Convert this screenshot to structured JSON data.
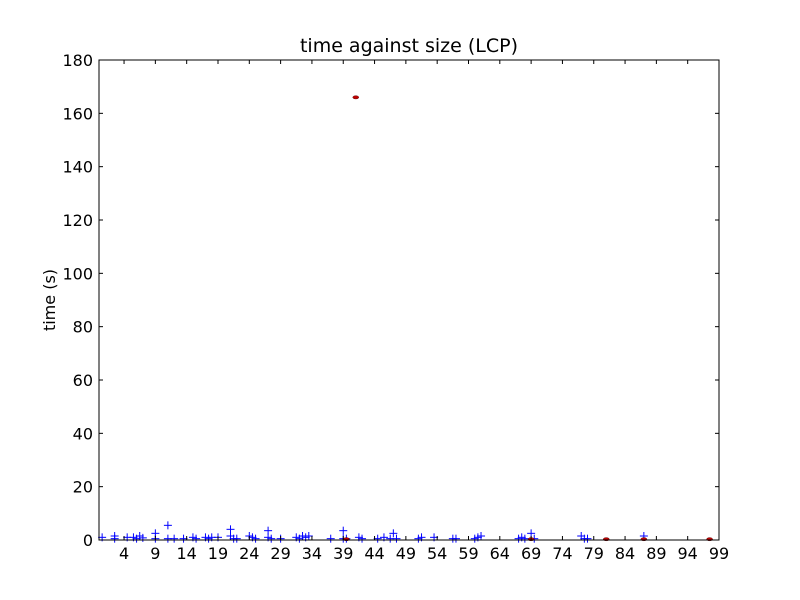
{
  "chart_data": {
    "type": "scatter",
    "title": "time against size (LCP)",
    "xlabel": "",
    "ylabel": "time (s)",
    "xlim": [
      0,
      99
    ],
    "ylim": [
      0,
      180
    ],
    "x_ticks": [
      4,
      9,
      14,
      19,
      24,
      29,
      34,
      39,
      44,
      49,
      54,
      59,
      64,
      69,
      74,
      79,
      84,
      89,
      94,
      99
    ],
    "y_ticks": [
      0,
      20,
      40,
      60,
      80,
      100,
      120,
      140,
      160,
      180
    ],
    "grid": false,
    "series": [
      {
        "marker": "+",
        "color": "#0000ff",
        "points": [
          [
            0.5,
            1.0
          ],
          [
            2.5,
            1.5
          ],
          [
            2.5,
            0.5
          ],
          [
            4.5,
            1.0
          ],
          [
            5.5,
            1.0
          ],
          [
            6.0,
            0.5
          ],
          [
            6.5,
            1.5
          ],
          [
            7.0,
            0.8
          ],
          [
            9.0,
            2.5
          ],
          [
            9.0,
            0.5
          ],
          [
            11.0,
            5.5
          ],
          [
            11.0,
            0.5
          ],
          [
            12.0,
            0.5
          ],
          [
            13.5,
            0.5
          ],
          [
            15.0,
            1.0
          ],
          [
            15.5,
            0.5
          ],
          [
            17.0,
            1.0
          ],
          [
            17.5,
            0.5
          ],
          [
            18.0,
            1.0
          ],
          [
            19.0,
            1.0
          ],
          [
            21.0,
            4.0
          ],
          [
            21.0,
            1.5
          ],
          [
            21.5,
            0.5
          ],
          [
            22.0,
            0.5
          ],
          [
            24.0,
            1.5
          ],
          [
            24.5,
            1.0
          ],
          [
            25.0,
            0.5
          ],
          [
            27.0,
            3.5
          ],
          [
            27.0,
            1.0
          ],
          [
            27.5,
            0.5
          ],
          [
            29.0,
            0.5
          ],
          [
            31.5,
            1.0
          ],
          [
            32.0,
            0.5
          ],
          [
            32.5,
            1.5
          ],
          [
            33.0,
            1.0
          ],
          [
            33.5,
            1.5
          ],
          [
            37.0,
            0.5
          ],
          [
            39.0,
            3.5
          ],
          [
            39.0,
            0.5
          ],
          [
            39.5,
            0.5
          ],
          [
            41.5,
            1.0
          ],
          [
            42.0,
            0.5
          ],
          [
            44.5,
            0.5
          ],
          [
            45.5,
            1.0
          ],
          [
            46.5,
            0.5
          ],
          [
            47.0,
            2.5
          ],
          [
            47.5,
            0.5
          ],
          [
            51.0,
            0.5
          ],
          [
            51.5,
            1.0
          ],
          [
            53.5,
            1.0
          ],
          [
            56.5,
            0.5
          ],
          [
            57.0,
            0.5
          ],
          [
            60.0,
            0.5
          ],
          [
            60.5,
            1.0
          ],
          [
            61.0,
            1.5
          ],
          [
            67.0,
            0.5
          ],
          [
            67.5,
            1.0
          ],
          [
            68.0,
            0.5
          ],
          [
            69.0,
            2.5
          ],
          [
            69.5,
            0.5
          ],
          [
            77.0,
            1.5
          ],
          [
            77.5,
            0.5
          ],
          [
            78.0,
            0.5
          ],
          [
            87.0,
            1.5
          ]
        ]
      },
      {
        "marker": "dot",
        "color": "#c00000",
        "points": [
          [
            41.0,
            166.0
          ],
          [
            81.0,
            0.3
          ],
          [
            97.5,
            0.3
          ],
          [
            39.5,
            0.3
          ],
          [
            69.0,
            0.3
          ],
          [
            87.0,
            0.3
          ]
        ]
      }
    ]
  }
}
